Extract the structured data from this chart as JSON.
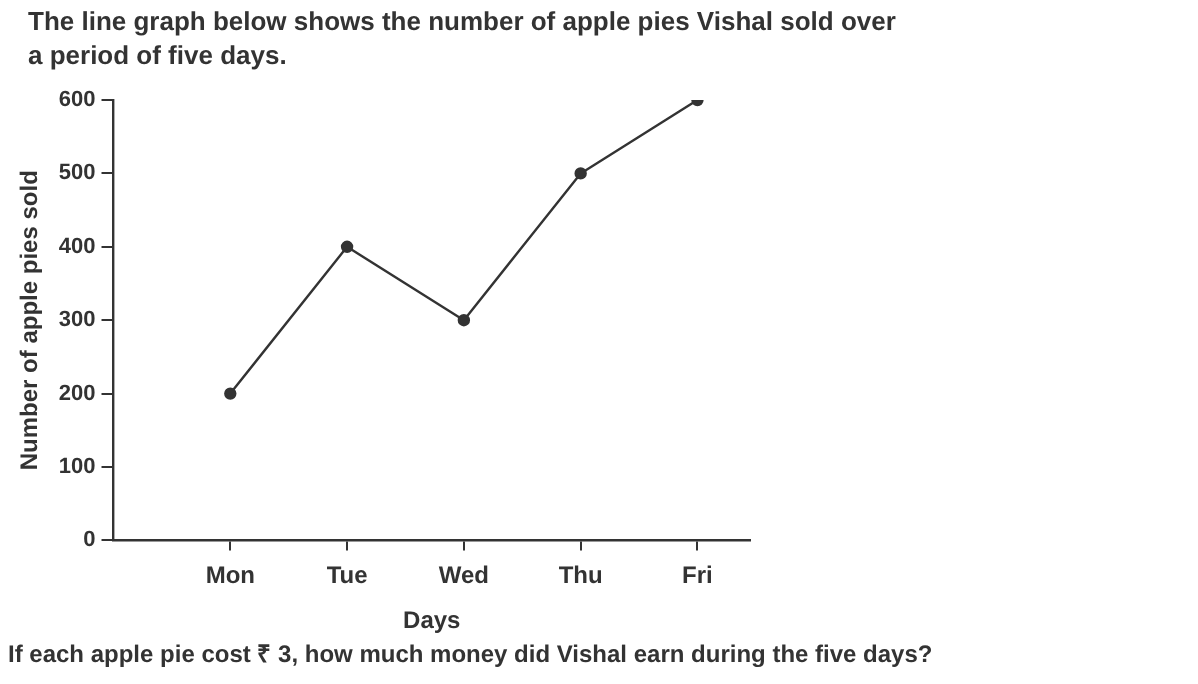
{
  "chart_data": {
    "type": "line",
    "title": "The line graph below shows the number of apple pies Vishal sold over a period of five days.",
    "xlabel": "Days",
    "ylabel": "Number of apple pies sold",
    "categories": [
      "Mon",
      "Tue",
      "Wed",
      "Thu",
      "Fri"
    ],
    "series": [
      {
        "color": "#333333",
        "values": [
          200,
          400,
          300,
          500,
          600
        ]
      }
    ],
    "ylim": [
      0,
      600
    ],
    "yticks": [
      0,
      100,
      200,
      300,
      400,
      500,
      600
    ],
    "grid": false,
    "legend": false,
    "marker": "circle",
    "line_style": "solid",
    "annotations": [
      "If each apple pie cost ₹ 3, how much money did Vishal earn during the five days?"
    ]
  }
}
